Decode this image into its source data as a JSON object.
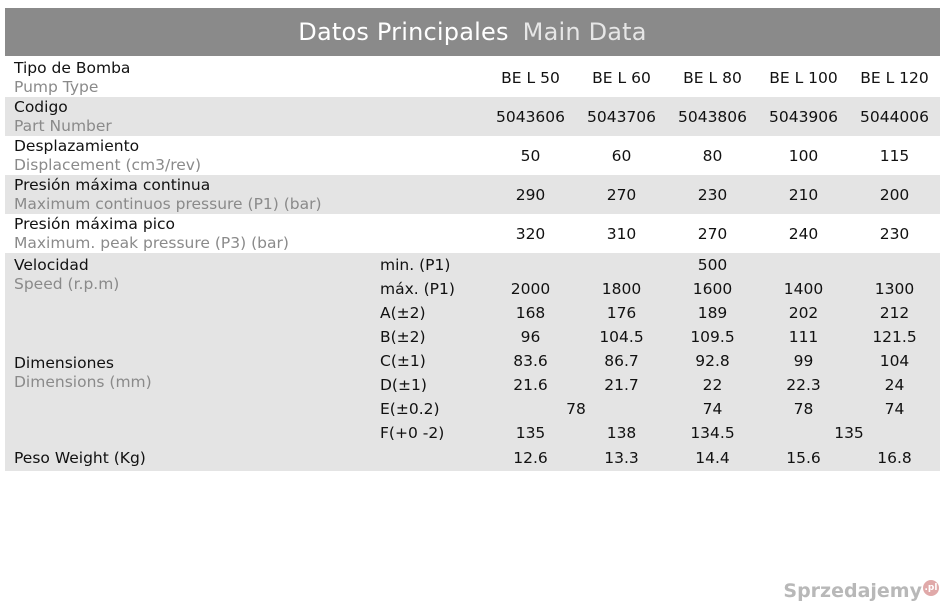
{
  "title": {
    "es": "Datos Principales",
    "en": "Main Data"
  },
  "models": [
    "BE L 50",
    "BE L 60",
    "BE L 80",
    "BE L 100",
    "BE L 120"
  ],
  "simple_rows": [
    {
      "es": "Codigo",
      "en": "Part Number",
      "values": [
        "5043606",
        "5043706",
        "5043806",
        "5043906",
        "5044006"
      ]
    },
    {
      "es": "Desplazamiento",
      "en": "Displacement (cm3/rev)",
      "values": [
        "50",
        "60",
        "80",
        "100",
        "115"
      ]
    },
    {
      "es": "Presión máxima continua",
      "en": "Maximum continuos pressure (P1) (bar)",
      "values": [
        "290",
        "270",
        "230",
        "210",
        "200"
      ]
    },
    {
      "es": "Presión máxima pico",
      "en": "Maximum. peak pressure (P3) (bar)",
      "values": [
        "320",
        "310",
        "270",
        "240",
        "230"
      ]
    }
  ],
  "header_row": {
    "es": "Tipo de Bomba",
    "en": "Pump Type"
  },
  "speed": {
    "es": "Velocidad",
    "en": "Speed (r.p.m)",
    "min_label": "min. (P1)",
    "min_value": "500",
    "max_label": "máx. (P1)",
    "max_values": [
      "2000",
      "1800",
      "1600",
      "1400",
      "1300"
    ]
  },
  "dimensions": {
    "es": "Dimensiones",
    "en": "Dimensions (mm)",
    "A": {
      "label": "A(±2)",
      "values": [
        "168",
        "176",
        "189",
        "202",
        "212"
      ]
    },
    "B": {
      "label": "B(±2)",
      "values": [
        "96",
        "104.5",
        "109.5",
        "111",
        "121.5"
      ]
    },
    "C": {
      "label": "C(±1)",
      "values": [
        "83.6",
        "86.7",
        "92.8",
        "99",
        "104"
      ]
    },
    "D": {
      "label": "D(±1)",
      "values": [
        "21.6",
        "21.7",
        "22",
        "22.3",
        "24"
      ]
    },
    "E": {
      "label": "E(±0.2)",
      "merged_50_60": "78",
      "v80": "74",
      "v100": "78",
      "v120": "74"
    },
    "F": {
      "label": "F(+0 -2)",
      "v50": "135",
      "v60": "138",
      "v80": "134.5",
      "merged_100_120": "135"
    }
  },
  "weight": {
    "label": "Peso Weight (Kg)",
    "values": [
      "12.6",
      "13.3",
      "14.4",
      "15.6",
      "16.8"
    ]
  },
  "watermark": {
    "text": "Sprzedajemy",
    "badge": ".pl"
  }
}
